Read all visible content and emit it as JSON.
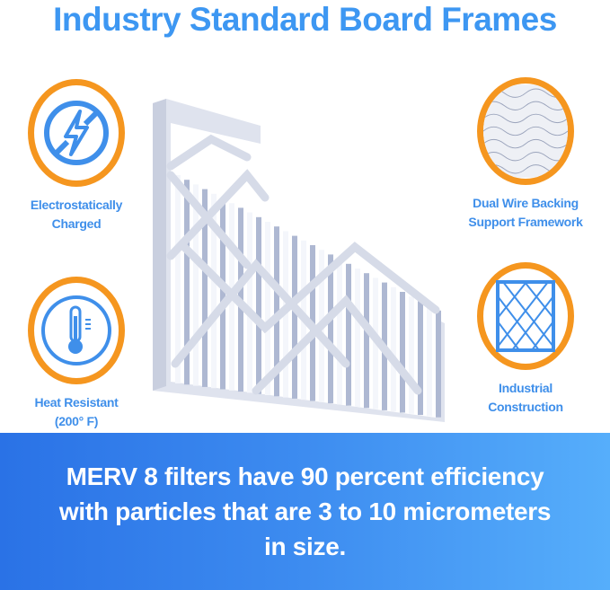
{
  "title": "Industry Standard Board Frames",
  "features": [
    {
      "label_lines": [
        "Electrostatically",
        "Charged"
      ],
      "icon": "no-static-bolt-icon"
    },
    {
      "label_lines": [
        "Heat Resistant",
        "(200° F)"
      ],
      "icon": "thermometer-icon"
    },
    {
      "label_lines": [
        "Dual Wire Backing",
        "Support Framework"
      ],
      "icon": "wire-mesh-photo"
    },
    {
      "label_lines": [
        "Industrial",
        "Construction"
      ],
      "icon": "diamond-grid-frame-icon"
    }
  ],
  "banner": {
    "text": "MERV 8 filters have 90 percent efficiency with particles that are 3 to 10 micrometers in size."
  },
  "colors": {
    "title": "#3d97f2",
    "ring": "#f5961f",
    "icon": "#3f8fea",
    "banner_start": "#2a72e6",
    "banner_end": "#56aefb"
  }
}
